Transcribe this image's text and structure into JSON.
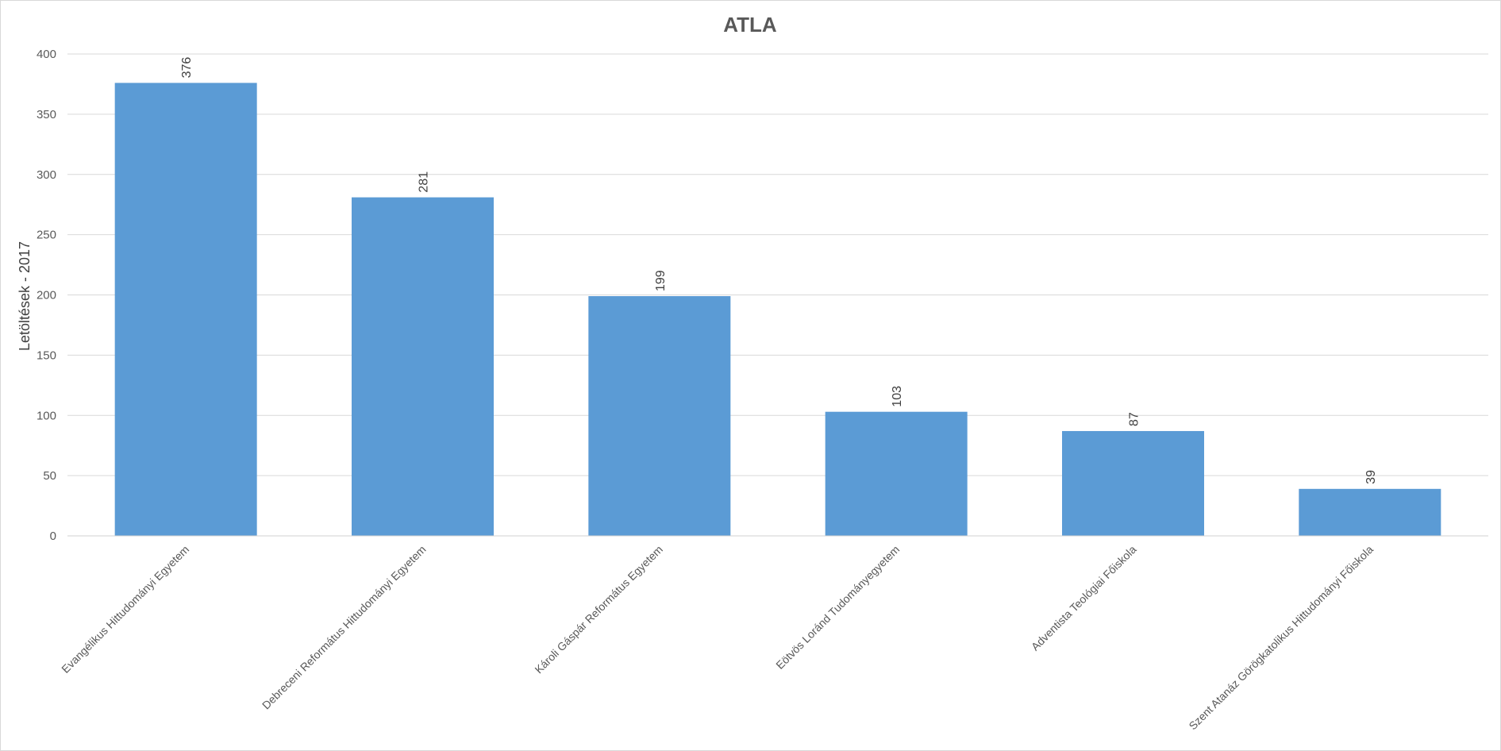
{
  "chart_data": {
    "type": "bar",
    "title": "ATLA",
    "xlabel": "",
    "ylabel": "Letöltések - 2017",
    "ylim": [
      0,
      400
    ],
    "yticks": [
      0,
      50,
      100,
      150,
      200,
      250,
      300,
      350,
      400
    ],
    "grid": true,
    "categories": [
      "Evangélikus Hittudományi Egyetem",
      "Debreceni Református Hittudományi Egyetem",
      "Károli Gáspár Református Egyetem",
      "Eötvös Loránd Tudományegyetem",
      "Adventista Teológiai Főiskola",
      "Szent Atanáz Görögkatolikus Hittudományi Főiskola"
    ],
    "values": [
      376,
      281,
      199,
      103,
      87,
      39
    ],
    "data_labels": [
      "376",
      "281",
      "199",
      "103",
      "87",
      "39"
    ],
    "bar_color": "#5b9bd5"
  }
}
